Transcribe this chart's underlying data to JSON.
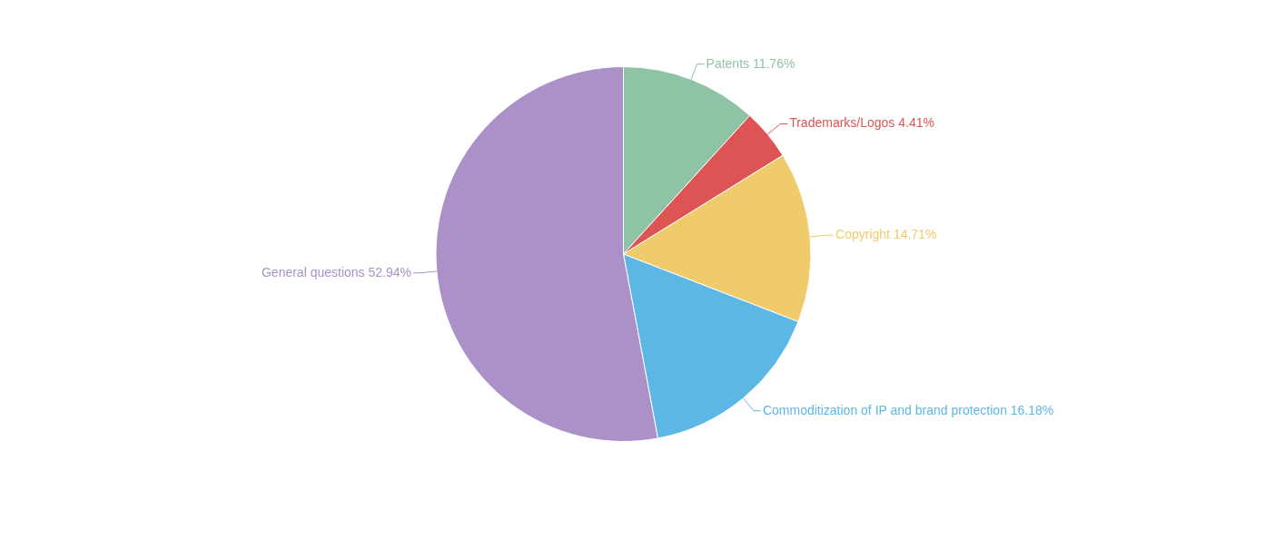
{
  "chart_data": {
    "type": "pie",
    "categories": [
      "Patents",
      "Trademarks/Logos",
      "Copyright",
      "Commoditization of IP and brand protection",
      "General questions"
    ],
    "values": [
      11.76,
      4.41,
      14.71,
      16.18,
      52.94
    ],
    "value_labels": [
      "11.76%",
      "4.41%",
      "14.71%",
      "16.18%",
      "52.94%"
    ],
    "colors": [
      "#8fc3a5",
      "#dc5454",
      "#efcb6b",
      "#5db7e5",
      "#ab91c7"
    ],
    "legend": false
  }
}
